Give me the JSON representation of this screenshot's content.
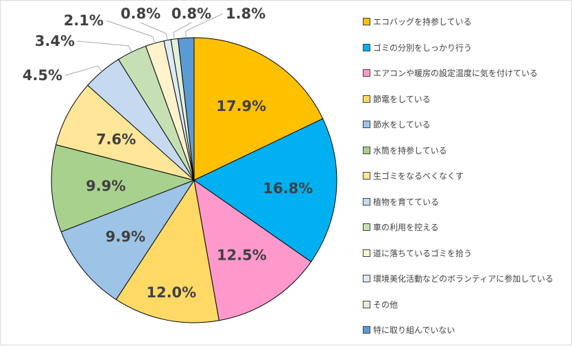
{
  "chart_data": {
    "type": "pie",
    "categories": [
      "エコバッグを持参している",
      "ゴミの分別をしっかり行う",
      "エアコンや暖房の設定温度に気を付けている",
      "節電をしている",
      "節水をしている",
      "水筒を持参している",
      "生ゴミをなるべくなくす",
      "植物を育てている",
      "車の利用を控える",
      "道に落ちているゴミを拾う",
      "環境美化活動などのボランティアに参加している",
      "その他",
      "特に取り組んでいない"
    ],
    "values": [
      17.9,
      16.8,
      12.5,
      12.0,
      9.9,
      9.9,
      7.6,
      4.5,
      3.4,
      2.1,
      0.8,
      0.8,
      1.8
    ],
    "data_labels": [
      "17.9%",
      "16.8%",
      "12.5%",
      "12.0%",
      "9.9%",
      "9.9%",
      "7.6%",
      "4.5%",
      "3.4%",
      "2.1%",
      "0.8%",
      "0.8%",
      "1.8%"
    ],
    "colors": [
      "#FFC000",
      "#00B0F0",
      "#FF99CC",
      "#FFD966",
      "#9DC3E6",
      "#A9D18E",
      "#FFE699",
      "#C5D9F1",
      "#C6E0B4",
      "#FFF2CC",
      "#DDEBF7",
      "#E2EFDA",
      "#5B9BD5"
    ],
    "legend_position": "right",
    "start_angle": "12 o'clock",
    "direction": "clockwise"
  }
}
